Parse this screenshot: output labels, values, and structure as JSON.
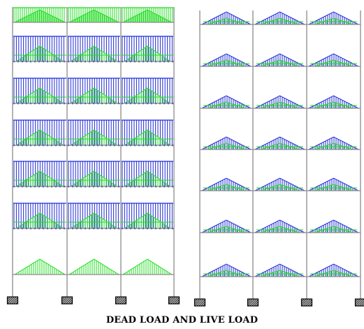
{
  "caption": "DEAD LOAD AND LIVE LOAD",
  "colors": {
    "frame": "#8a8a8a",
    "dead_load": "#1f2bd6",
    "live_load": "#22dd22",
    "support_fill": "#cccccc",
    "support_hatch": "#000000"
  },
  "frames": [
    {
      "name": "dead-load-frame",
      "bays": 3,
      "floors": 7,
      "floor_loads": [
        "uniform-green",
        "uniform-blue-with-triangle",
        "uniform-blue-with-triangle",
        "uniform-blue-with-triangle",
        "uniform-blue-with-triangle",
        "uniform-blue-with-triangle",
        "triangle-green"
      ]
    },
    {
      "name": "live-load-frame",
      "bays": 3,
      "floors": 7,
      "floor_loads": [
        "triangle-blue-green",
        "triangle-blue-green",
        "triangle-blue-green",
        "triangle-blue-green",
        "triangle-blue-green",
        "triangle-blue-green",
        "triangle-blue-green"
      ]
    }
  ]
}
